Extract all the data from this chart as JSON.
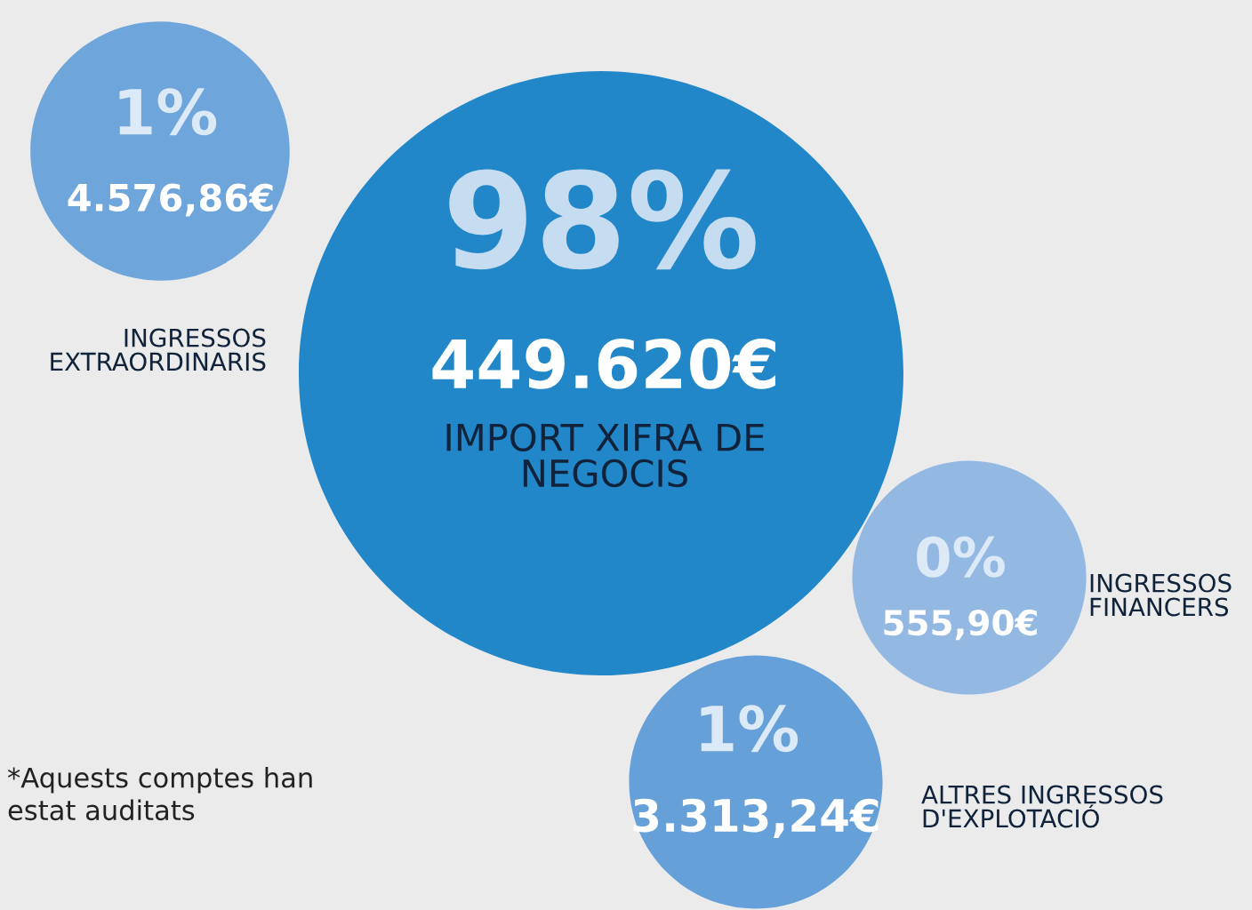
{
  "chart_data": {
    "type": "other",
    "categories": [
      "INGRESSOS\nEXTRAORDINARIS",
      "IMPORT XIFRA DE\nNEGOCIS",
      "INGRESSOS\nFINANCERS",
      "ALTRES INGRESSOS\nD'EXPLOTACIÓ"
    ],
    "series": [
      {
        "colors": [
          "#6ea5da",
          "#2287c9",
          "#93b9e3",
          "#65a0d8"
        ],
        "values": [
          1,
          98,
          0,
          1
        ],
        "value_labels": [
          "1%",
          "98%",
          "0%",
          "1%"
        ]
      },
      {
        "values": [
          4576.86,
          449620,
          555.9,
          3313.24
        ],
        "value_labels": [
          "4.576,86€",
          "449.620€",
          "555,90€",
          "3.313,24€"
        ]
      }
    ],
    "annotations": [
      "*Aquests comptes han\nestat auditats"
    ]
  }
}
